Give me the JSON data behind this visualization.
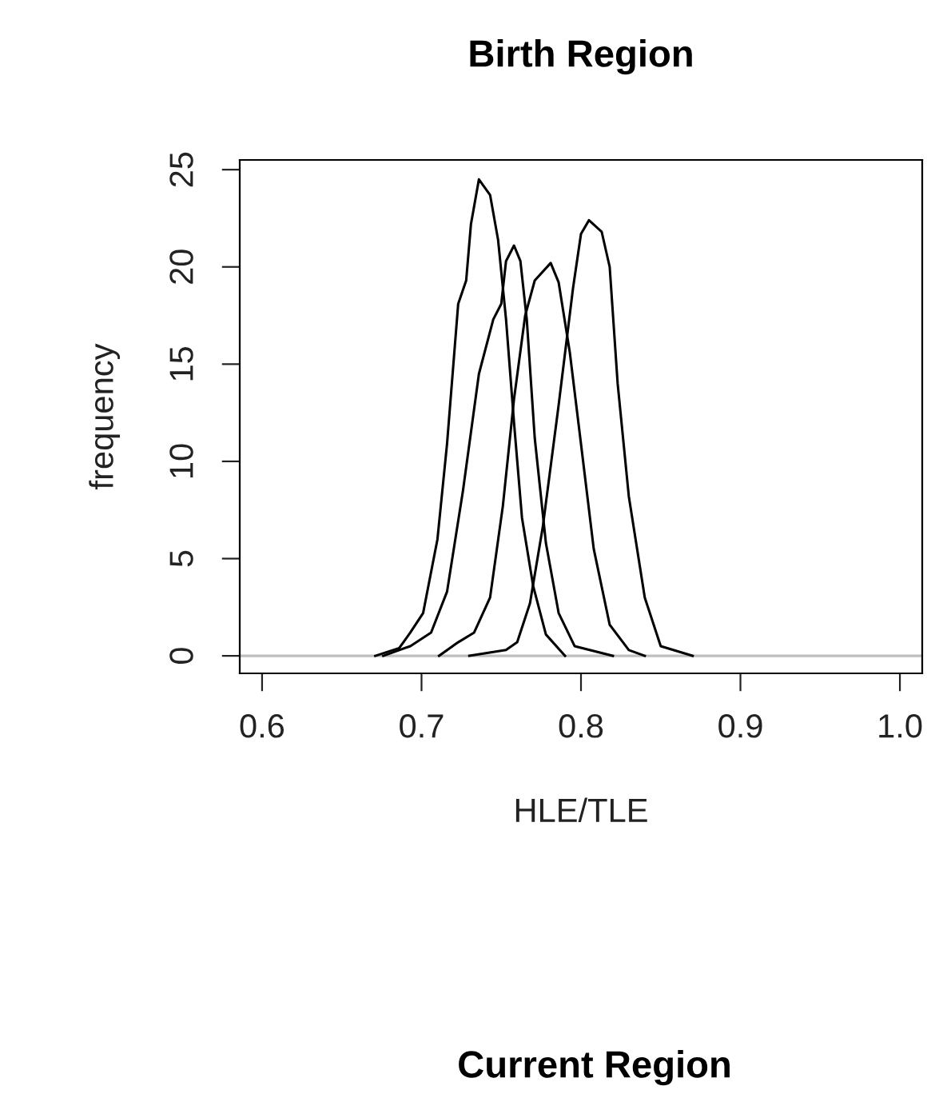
{
  "chart_data": {
    "type": "line",
    "title": "Birth Region",
    "xlabel": "HLE/TLE",
    "ylabel": "frequency",
    "annotations": [
      "Current Region"
    ],
    "xlim": [
      0.586,
      1.014
    ],
    "xticks": [
      0.6,
      0.7,
      0.8,
      0.9,
      {
        "value": 1.0,
        "label": "1.0"
      }
    ],
    "ylim": [
      -0.9,
      25.5
    ],
    "yticks": [
      0,
      5,
      10,
      15,
      20,
      25
    ],
    "grid": false,
    "legend": false,
    "line_style": "solid",
    "ref_lines": [
      {
        "axis": "y",
        "value": 0,
        "color": "#bebebe"
      }
    ],
    "series": [
      {
        "color": "#000000",
        "x": [
          0.671,
          0.686,
          0.693,
          0.701,
          0.71,
          0.716,
          0.723,
          0.728,
          0.731,
          0.736,
          0.743,
          0.748,
          0.753,
          0.758,
          0.763,
          0.77,
          0.778,
          0.79
        ],
        "values": [
          0,
          0.4,
          1.2,
          2.2,
          6.0,
          10.9,
          18.1,
          19.3,
          22.2,
          24.5,
          23.7,
          21.4,
          17.3,
          12.0,
          7.1,
          3.6,
          1.1,
          0
        ]
      },
      {
        "color": "#000000",
        "x": [
          0.676,
          0.693,
          0.706,
          0.716,
          0.726,
          0.736,
          0.745,
          0.75,
          0.753,
          0.758,
          0.762,
          0.766,
          0.771,
          0.778,
          0.786,
          0.796,
          0.82
        ],
        "values": [
          0,
          0.5,
          1.2,
          3.3,
          8.5,
          14.5,
          17.3,
          18.1,
          20.3,
          21.1,
          20.3,
          17.3,
          11.2,
          5.8,
          2.2,
          0.5,
          0
        ]
      },
      {
        "color": "#000000",
        "x": [
          0.711,
          0.723,
          0.733,
          0.743,
          0.751,
          0.758,
          0.765,
          0.771,
          0.781,
          0.786,
          0.793,
          0.8,
          0.808,
          0.818,
          0.83,
          0.84
        ],
        "values": [
          0,
          0.7,
          1.2,
          3.0,
          7.7,
          13.2,
          17.5,
          19.3,
          20.2,
          19.2,
          15.6,
          10.9,
          5.5,
          1.6,
          0.3,
          0
        ]
      },
      {
        "color": "#000000",
        "x": [
          0.73,
          0.753,
          0.76,
          0.768,
          0.776,
          0.786,
          0.795,
          0.8,
          0.805,
          0.813,
          0.818,
          0.823,
          0.83,
          0.84,
          0.85,
          0.87
        ],
        "values": [
          0,
          0.3,
          0.7,
          2.7,
          6.6,
          12.9,
          18.9,
          21.7,
          22.4,
          21.8,
          20.0,
          14.0,
          8.2,
          3.0,
          0.5,
          0
        ]
      }
    ]
  }
}
